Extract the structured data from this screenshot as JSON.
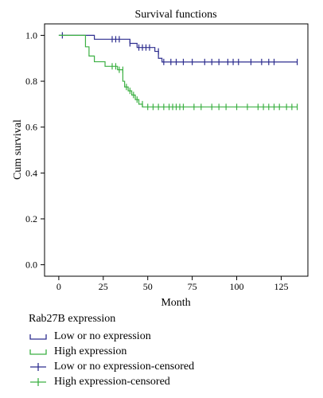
{
  "chart_data": {
    "type": "line",
    "title": "Survival functions",
    "xlabel": "Month",
    "ylabel": "Cum survival",
    "xlim": [
      -8,
      140
    ],
    "ylim": [
      -0.05,
      1.05
    ],
    "x_ticks": [
      0,
      25,
      50,
      75,
      100,
      125
    ],
    "y_ticks": [
      0.0,
      0.2,
      0.4,
      0.6,
      0.8,
      1.0
    ],
    "x_tick_labels": [
      "0",
      "25",
      "50",
      "75",
      "100",
      "125"
    ],
    "y_tick_labels": [
      "0.0",
      "0.2",
      "0.4",
      "0.6",
      "0.8",
      "1.0"
    ],
    "series": [
      {
        "name": "Low or no expression",
        "color": "#2e2e8f",
        "step_points": [
          [
            0,
            1.0
          ],
          [
            20,
            1.0
          ],
          [
            20,
            0.983
          ],
          [
            40,
            0.983
          ],
          [
            40,
            0.965
          ],
          [
            44,
            0.965
          ],
          [
            44,
            0.947
          ],
          [
            54,
            0.947
          ],
          [
            54,
            0.93
          ],
          [
            56,
            0.93
          ],
          [
            56,
            0.9
          ],
          [
            58,
            0.9
          ],
          [
            58,
            0.884
          ],
          [
            134,
            0.884
          ]
        ],
        "censored": [
          [
            2,
            1.0
          ],
          [
            30,
            0.983
          ],
          [
            32,
            0.983
          ],
          [
            34,
            0.983
          ],
          [
            40,
            0.965
          ],
          [
            45,
            0.947
          ],
          [
            47,
            0.947
          ],
          [
            49,
            0.947
          ],
          [
            51,
            0.947
          ],
          [
            56,
            0.93
          ],
          [
            59,
            0.884
          ],
          [
            63,
            0.884
          ],
          [
            66,
            0.884
          ],
          [
            70,
            0.884
          ],
          [
            75,
            0.884
          ],
          [
            82,
            0.884
          ],
          [
            86,
            0.884
          ],
          [
            90,
            0.884
          ],
          [
            95,
            0.884
          ],
          [
            98,
            0.884
          ],
          [
            101,
            0.884
          ],
          [
            108,
            0.884
          ],
          [
            114,
            0.884
          ],
          [
            118,
            0.884
          ],
          [
            121,
            0.884
          ],
          [
            134,
            0.884
          ]
        ]
      },
      {
        "name": "High expression",
        "color": "#3cb043",
        "step_points": [
          [
            0,
            1.0
          ],
          [
            15,
            1.0
          ],
          [
            15,
            0.95
          ],
          [
            17,
            0.95
          ],
          [
            17,
            0.91
          ],
          [
            20,
            0.91
          ],
          [
            20,
            0.885
          ],
          [
            26,
            0.885
          ],
          [
            26,
            0.865
          ],
          [
            33,
            0.865
          ],
          [
            33,
            0.85
          ],
          [
            36,
            0.85
          ],
          [
            36,
            0.8
          ],
          [
            37,
            0.8
          ],
          [
            37,
            0.775
          ],
          [
            39,
            0.775
          ],
          [
            39,
            0.758
          ],
          [
            41,
            0.758
          ],
          [
            41,
            0.74
          ],
          [
            43,
            0.74
          ],
          [
            43,
            0.72
          ],
          [
            45,
            0.72
          ],
          [
            45,
            0.7
          ],
          [
            47,
            0.7
          ],
          [
            47,
            0.688
          ],
          [
            134,
            0.688
          ]
        ],
        "censored": [
          [
            30,
            0.865
          ],
          [
            32,
            0.865
          ],
          [
            34,
            0.85
          ],
          [
            36,
            0.85
          ],
          [
            38,
            0.775
          ],
          [
            40,
            0.758
          ],
          [
            42,
            0.74
          ],
          [
            44,
            0.72
          ],
          [
            47,
            0.7
          ],
          [
            50,
            0.688
          ],
          [
            53,
            0.688
          ],
          [
            56,
            0.688
          ],
          [
            59,
            0.688
          ],
          [
            62,
            0.688
          ],
          [
            64,
            0.688
          ],
          [
            66,
            0.688
          ],
          [
            68,
            0.688
          ],
          [
            70,
            0.688
          ],
          [
            76,
            0.688
          ],
          [
            80,
            0.688
          ],
          [
            86,
            0.688
          ],
          [
            90,
            0.688
          ],
          [
            94,
            0.688
          ],
          [
            100,
            0.688
          ],
          [
            106,
            0.688
          ],
          [
            112,
            0.688
          ],
          [
            115,
            0.688
          ],
          [
            118,
            0.688
          ],
          [
            121,
            0.688
          ],
          [
            124,
            0.688
          ],
          [
            128,
            0.688
          ],
          [
            131,
            0.688
          ],
          [
            134,
            0.688
          ]
        ]
      }
    ],
    "legend": {
      "title": "Rab27B expression",
      "entries": [
        {
          "label": "Low or no expression",
          "color": "#2e2e8f",
          "kind": "line"
        },
        {
          "label": "High expression",
          "color": "#3cb043",
          "kind": "line"
        },
        {
          "label": "Low or no expression-censored",
          "color": "#2e2e8f",
          "kind": "cross"
        },
        {
          "label": "High expression-censored",
          "color": "#3cb043",
          "kind": "cross"
        }
      ],
      "placement": "bottom"
    },
    "grid": false
  }
}
